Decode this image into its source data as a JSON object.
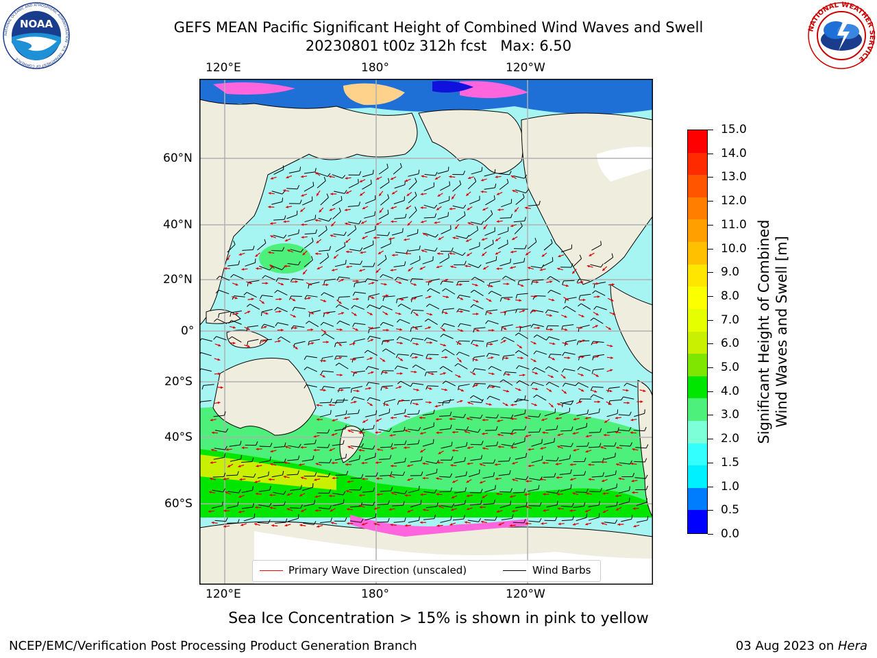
{
  "title_line1": "GEFS MEAN Pacific Significant Height of Combined Wind Waves and Swell",
  "title_line2": "20230801 t00z 312h fcst   Max: 6.50",
  "top_lon_labels": [
    "120°E",
    "180°",
    "120°W"
  ],
  "bottom_lon_labels": [
    "120°E",
    "180°",
    "120°W"
  ],
  "lat_labels": [
    "60°N",
    "40°N",
    "20°N",
    "0°",
    "20°S",
    "40°S",
    "60°S"
  ],
  "colorbar": {
    "label_line1": "Significant Height of Combined",
    "label_line2": "Wind Waves and Swell [m]",
    "ticks": [
      "15.0",
      "14.0",
      "13.0",
      "12.0",
      "11.0",
      "10.0",
      "9.0",
      "8.0",
      "7.0",
      "6.0",
      "5.0",
      "4.0",
      "3.0",
      "2.0",
      "1.5",
      "1.0",
      "0.5",
      "0.0"
    ],
    "colors_top_to_bottom": [
      "#ff0000",
      "#ff2a00",
      "#ff5400",
      "#ff7e00",
      "#ffa000",
      "#ffc000",
      "#ffe600",
      "#fbff00",
      "#e6ff00",
      "#c8f000",
      "#7ee600",
      "#00e600",
      "#4df07a",
      "#7dffd7",
      "#33ffff",
      "#00f0ff",
      "#007cff",
      "#0000ff"
    ]
  },
  "legend": {
    "wave_label": "Primary Wave Direction (unscaled)",
    "barb_label": "Wind Barbs",
    "wave_color": "#ff0000",
    "barb_color": "#000000"
  },
  "note": "Sea Ice Concentration > 15% is shown in pink to yellow",
  "footer_left": "NCEP/EMC/Verification Post Processing Product Generation Branch",
  "footer_right_date": "03 Aug 2023 on ",
  "footer_right_host": "Hera",
  "logos": {
    "noaa": "NOAA",
    "noaa_ring": "NATIONAL OCEANIC AND ATMOSPHERIC ADMINISTRATION · U.S. DEPARTMENT OF COMMERCE",
    "nws_ring": "NATIONAL WEATHER SERVICE"
  }
}
